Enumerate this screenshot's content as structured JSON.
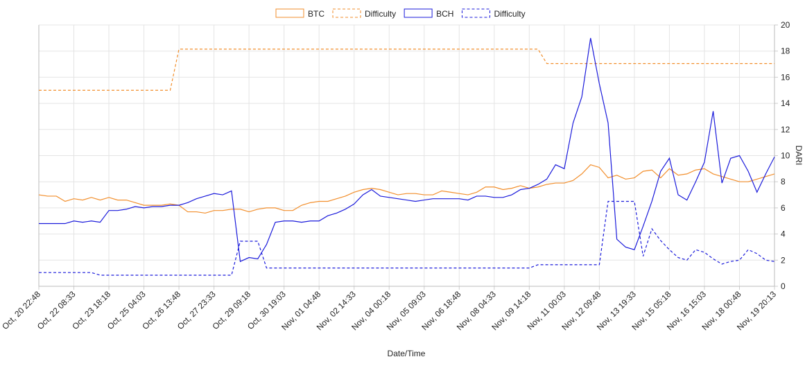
{
  "chart_data": {
    "type": "line",
    "x_label": "Date/Time",
    "y_label": "DARI",
    "categories": [
      "Oct, 20 22:48",
      null,
      null,
      null,
      "Oct, 22 08:33",
      null,
      null,
      null,
      "Oct, 23 18:18",
      null,
      null,
      null,
      "Oct, 25 04:03",
      null,
      null,
      null,
      "Oct, 26 13:48",
      null,
      null,
      null,
      "Oct, 27 23:33",
      null,
      null,
      null,
      "Oct, 29 09:18",
      null,
      null,
      null,
      "Oct, 30 19:03",
      null,
      null,
      null,
      "Nov, 01 04:48",
      null,
      null,
      null,
      "Nov, 02 14:33",
      null,
      null,
      null,
      "Nov, 04 00:18",
      null,
      null,
      null,
      "Nov, 05 09:03",
      null,
      null,
      null,
      "Nov, 06 18:48",
      null,
      null,
      null,
      "Nov, 08 04:33",
      null,
      null,
      null,
      "Nov, 09 14:18",
      null,
      null,
      null,
      "Nov, 11 00:03",
      null,
      null,
      null,
      "Nov, 12 09:48",
      null,
      null,
      null,
      "Nov, 13 19:33",
      null,
      null,
      null,
      "Nov, 15 05:18",
      null,
      null,
      null,
      "Nov, 16 15:03",
      null,
      null,
      null,
      "Nov, 18 00:48",
      null,
      null,
      null,
      "Nov, 19 20:13"
    ],
    "series": [
      {
        "name": "BTC",
        "color": "#f28e2b",
        "dashed": false,
        "values": [
          7.0,
          6.9,
          6.9,
          6.5,
          6.7,
          6.6,
          6.8,
          6.6,
          6.8,
          6.6,
          6.6,
          6.4,
          6.2,
          6.2,
          6.2,
          6.3,
          6.2,
          5.7,
          5.7,
          5.6,
          5.8,
          5.8,
          5.9,
          5.9,
          5.7,
          5.9,
          6.0,
          6.0,
          5.8,
          5.8,
          6.2,
          6.4,
          6.5,
          6.5,
          6.7,
          6.9,
          7.2,
          7.4,
          7.5,
          7.4,
          7.2,
          7.0,
          7.1,
          7.1,
          7.0,
          7.0,
          7.3,
          7.2,
          7.1,
          7.0,
          7.2,
          7.6,
          7.6,
          7.4,
          7.5,
          7.7,
          7.5,
          7.6,
          7.8,
          7.9,
          7.9,
          8.1,
          8.6,
          9.3,
          9.1,
          8.3,
          8.5,
          8.2,
          8.3,
          8.8,
          8.9,
          8.3,
          9.0,
          8.5,
          8.6,
          8.9,
          9.0,
          8.6,
          8.4,
          8.2,
          8.0,
          8.0,
          8.2,
          8.4,
          8.6
        ]
      },
      {
        "name": "Difficulty",
        "color": "#f28e2b",
        "dashed": true,
        "values": [
          15,
          15,
          15,
          15,
          15,
          15,
          15,
          15,
          15,
          15,
          15,
          15,
          15,
          15,
          15,
          15,
          18.15,
          18.15,
          18.15,
          18.15,
          18.15,
          18.15,
          18.15,
          18.15,
          18.15,
          18.15,
          18.15,
          18.15,
          18.15,
          18.15,
          18.15,
          18.15,
          18.15,
          18.15,
          18.15,
          18.15,
          18.15,
          18.15,
          18.15,
          18.15,
          18.15,
          18.15,
          18.15,
          18.15,
          18.15,
          18.15,
          18.15,
          18.15,
          18.15,
          18.15,
          18.15,
          18.15,
          18.15,
          18.15,
          18.15,
          18.15,
          18.15,
          18.15,
          17.05,
          17.05,
          17.05,
          17.05,
          17.05,
          17.05,
          17.05,
          17.05,
          17.05,
          17.05,
          17.05,
          17.05,
          17.05,
          17.05,
          17.05,
          17.05,
          17.05,
          17.05,
          17.05,
          17.05,
          17.05,
          17.05,
          17.05,
          17.05,
          17.05,
          17.05,
          17.05
        ]
      },
      {
        "name": "BCH",
        "color": "#1a1adb",
        "dashed": false,
        "values": [
          4.8,
          4.8,
          4.8,
          4.8,
          5.0,
          4.9,
          5.0,
          4.9,
          5.8,
          5.8,
          5.9,
          6.1,
          6.0,
          6.1,
          6.1,
          6.2,
          6.2,
          6.4,
          6.7,
          6.9,
          7.1,
          7.0,
          7.3,
          1.9,
          2.2,
          2.1,
          3.2,
          4.9,
          5.0,
          5.0,
          4.9,
          5.0,
          5.0,
          5.4,
          5.6,
          5.9,
          6.3,
          7.0,
          7.4,
          6.9,
          6.8,
          6.7,
          6.6,
          6.5,
          6.6,
          6.7,
          6.7,
          6.7,
          6.7,
          6.6,
          6.9,
          6.9,
          6.8,
          6.8,
          7.0,
          7.4,
          7.5,
          7.8,
          8.2,
          9.3,
          9.0,
          12.5,
          14.5,
          19.0,
          15.5,
          12.5,
          3.6,
          3.0,
          2.8,
          4.6,
          6.5,
          8.8,
          9.8,
          7.0,
          6.6,
          8.0,
          9.5,
          13.4,
          7.9,
          9.8,
          10.0,
          8.8,
          7.2,
          8.6,
          9.9
        ]
      },
      {
        "name": "Difficulty",
        "color": "#1a1adb",
        "dashed": true,
        "values": [
          1.05,
          1.05,
          1.05,
          1.05,
          1.05,
          1.05,
          1.05,
          0.85,
          0.85,
          0.85,
          0.85,
          0.85,
          0.85,
          0.85,
          0.85,
          0.85,
          0.85,
          0.85,
          0.85,
          0.85,
          0.85,
          0.85,
          0.85,
          3.45,
          3.45,
          3.45,
          1.4,
          1.4,
          1.4,
          1.4,
          1.4,
          1.4,
          1.4,
          1.4,
          1.4,
          1.4,
          1.4,
          1.4,
          1.4,
          1.4,
          1.4,
          1.4,
          1.4,
          1.4,
          1.4,
          1.4,
          1.4,
          1.4,
          1.4,
          1.4,
          1.4,
          1.4,
          1.4,
          1.4,
          1.4,
          1.4,
          1.4,
          1.65,
          1.65,
          1.65,
          1.65,
          1.65,
          1.65,
          1.65,
          1.65,
          6.5,
          6.5,
          6.5,
          6.5,
          2.3,
          4.4,
          3.5,
          2.8,
          2.2,
          2.0,
          2.8,
          2.6,
          2.1,
          1.7,
          1.9,
          2.0,
          2.8,
          2.5,
          2.0,
          1.9
        ]
      }
    ],
    "ylim": [
      0,
      20
    ],
    "yticks": [
      0,
      2,
      4,
      6,
      8,
      10,
      12,
      14,
      16,
      18,
      20
    ],
    "grid": true,
    "legend": "top"
  }
}
